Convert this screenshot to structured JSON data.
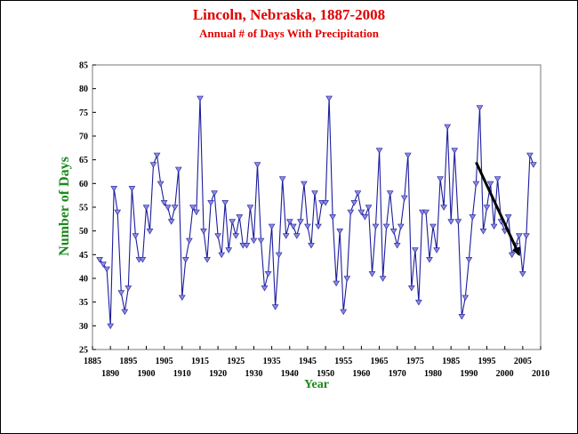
{
  "chart_data": {
    "type": "line",
    "title": "Lincoln, Nebraska, 1887-2008",
    "subtitle": "Annual # of Days With Precipitation",
    "xlabel": "Year",
    "ylabel": "Number of Days",
    "xlim": [
      1885,
      2010
    ],
    "ylim": [
      25,
      85
    ],
    "x_ticks_upper": [
      "1885",
      "1895",
      "1905",
      "1915",
      "1925",
      "1935",
      "1945",
      "1955",
      "1965",
      "1975",
      "1985",
      "1995",
      "2005"
    ],
    "x_ticks_lower": [
      "1890",
      "1900",
      "1910",
      "1920",
      "1930",
      "1940",
      "1950",
      "1960",
      "1970",
      "1980",
      "1990",
      "2000",
      "2010"
    ],
    "y_ticks": [
      "25",
      "30",
      "35",
      "40",
      "45",
      "50",
      "55",
      "60",
      "65",
      "70",
      "75",
      "80",
      "85"
    ],
    "line_color": "#1c1c9e",
    "marker_color": "#8a8ae0",
    "series": [
      {
        "x": [
          1887,
          1888,
          1889,
          1890,
          1891,
          1892,
          1893,
          1894,
          1895,
          1896,
          1897,
          1898,
          1899,
          1900,
          1901,
          1902,
          1903,
          1904,
          1905,
          1906,
          1907,
          1908,
          1909,
          1910,
          1911,
          1912,
          1913,
          1914,
          1915,
          1916,
          1917,
          1918,
          1919,
          1920,
          1921,
          1922,
          1923,
          1924,
          1925,
          1926,
          1927,
          1928,
          1929,
          1930,
          1931,
          1932,
          1933,
          1934,
          1935,
          1936,
          1937,
          1938,
          1939,
          1940,
          1941,
          1942,
          1943,
          1944,
          1945,
          1946,
          1947,
          1948,
          1949,
          1950,
          1951,
          1952,
          1953,
          1954,
          1955,
          1956,
          1957,
          1958,
          1959,
          1960,
          1961,
          1962,
          1963,
          1964,
          1965,
          1966,
          1967,
          1968,
          1969,
          1970,
          1971,
          1972,
          1973,
          1974,
          1975,
          1976,
          1977,
          1978,
          1979,
          1980,
          1981,
          1982,
          1983,
          1984,
          1985,
          1986,
          1987,
          1988,
          1989,
          1990,
          1991,
          1992,
          1993,
          1994,
          1995,
          1996,
          1997,
          1998,
          1999,
          2000,
          2001,
          2002,
          2003,
          2004,
          2005,
          2006,
          2007,
          2008
        ],
        "values": [
          44,
          43,
          42,
          30,
          59,
          54,
          37,
          33,
          38,
          59,
          49,
          44,
          44,
          55,
          50,
          64,
          66,
          60,
          56,
          55,
          52,
          55,
          63,
          36,
          44,
          48,
          55,
          54,
          78,
          50,
          44,
          56,
          58,
          49,
          45,
          56,
          46,
          52,
          49,
          53,
          47,
          47,
          55,
          48,
          64,
          48,
          38,
          41,
          51,
          34,
          45,
          61,
          49,
          52,
          51,
          49,
          52,
          60,
          51,
          47,
          58,
          51,
          56,
          56,
          78,
          53,
          39,
          50,
          33,
          40,
          54,
          56,
          58,
          54,
          53,
          55,
          41,
          51,
          67,
          40,
          51,
          58,
          50,
          47,
          51,
          57,
          66,
          38,
          46,
          35,
          54,
          54,
          44,
          51,
          46,
          61,
          55,
          72,
          52,
          67,
          52,
          32,
          36,
          44,
          53,
          60,
          76,
          50,
          55,
          60,
          51,
          61,
          52,
          50,
          53,
          45,
          47,
          49,
          41,
          49,
          66,
          64
        ]
      }
    ],
    "annotation": {
      "type": "arrow",
      "color": "#000000",
      "from": [
        1992,
        64.5
      ],
      "to": [
        2004,
        45
      ]
    }
  }
}
